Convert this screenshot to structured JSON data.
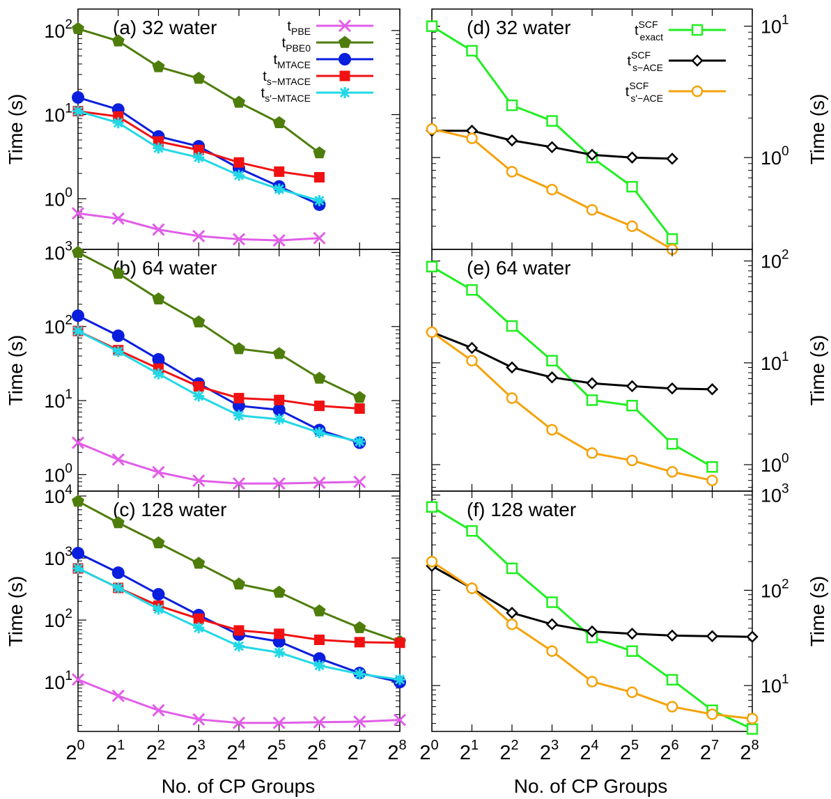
{
  "figure": {
    "xlabel": "No. of CP Groups",
    "ylabel": "Time (s)",
    "x_tick_labels": [
      {
        "base": "2",
        "exp": "0"
      },
      {
        "base": "2",
        "exp": "1"
      },
      {
        "base": "2",
        "exp": "2"
      },
      {
        "base": "2",
        "exp": "3"
      },
      {
        "base": "2",
        "exp": "4"
      },
      {
        "base": "2",
        "exp": "5"
      },
      {
        "base": "2",
        "exp": "6"
      },
      {
        "base": "2",
        "exp": "7"
      },
      {
        "base": "2",
        "exp": "8"
      }
    ]
  },
  "styles": {
    "t_PBE": {
      "color": "#e15ee8",
      "marker": "x"
    },
    "t_PBE0": {
      "color": "#4e7d0c",
      "marker": "pentagon"
    },
    "t_MTACE": {
      "color": "#0a1ede",
      "marker": "circle"
    },
    "t_s_MTACE": {
      "color": "#f01212",
      "marker": "square"
    },
    "t_s_prime_MTACE": {
      "color": "#22d8e6",
      "marker": "star"
    },
    "t_exact_SCF": {
      "color": "#22ee22",
      "marker": "open-square"
    },
    "t_s_ACE_SCF": {
      "color": "#000000",
      "marker": "diamond"
    },
    "t_s_prime_ACE_SCF": {
      "color": "#f5a20b",
      "marker": "open-circle"
    }
  },
  "chart_data": [
    {
      "type": "line",
      "panel": "a",
      "title": "(a) 32 water",
      "x": [
        0,
        1,
        2,
        3,
        4,
        5,
        6
      ],
      "xlim": [
        0,
        8
      ],
      "yscale": "log",
      "ylim": [
        0.25,
        180
      ],
      "yticks": [
        {
          "value": 1,
          "exp": "0"
        },
        {
          "value": 10,
          "exp": "1"
        },
        {
          "value": 100,
          "exp": "2"
        }
      ],
      "ylabel": "Time (s)",
      "ylabel_side": "left",
      "legend": "top-right",
      "series": [
        {
          "key": "t_PBE",
          "name": "PBE",
          "values": [
            0.67,
            0.58,
            0.43,
            0.36,
            0.33,
            0.32,
            0.34
          ]
        },
        {
          "key": "t_PBE0",
          "name": "PBE0",
          "values": [
            105,
            75,
            37,
            27,
            14,
            8,
            3.5
          ]
        },
        {
          "key": "t_MTACE",
          "name": "MTACE",
          "values": [
            16,
            11.5,
            5.5,
            4.2,
            2.3,
            1.4,
            0.85
          ]
        },
        {
          "key": "t_s_MTACE",
          "name": "s−MTACE",
          "values": [
            11,
            9.5,
            4.8,
            3.8,
            2.7,
            2.1,
            1.8
          ]
        },
        {
          "key": "t_s_prime_MTACE",
          "name": "s'−MTACE",
          "values": [
            11,
            8,
            4,
            3.1,
            1.9,
            1.3,
            0.95
          ]
        }
      ]
    },
    {
      "type": "line",
      "panel": "b",
      "title": "(b) 64 water",
      "x": [
        0,
        1,
        2,
        3,
        4,
        5,
        6,
        7
      ],
      "xlim": [
        0,
        8
      ],
      "yscale": "log",
      "ylim": [
        0.6,
        1100
      ],
      "yticks": [
        {
          "value": 1,
          "exp": "0"
        },
        {
          "value": 10,
          "exp": "1"
        },
        {
          "value": 100,
          "exp": "2"
        },
        {
          "value": 1000,
          "exp": "3"
        }
      ],
      "ylabel": "Time (s)",
      "ylabel_side": "left",
      "series": [
        {
          "key": "t_PBE",
          "values": [
            2.7,
            1.6,
            1.08,
            0.83,
            0.76,
            0.76,
            0.78,
            0.8
          ]
        },
        {
          "key": "t_PBE0",
          "values": [
            1000,
            520,
            235,
            115,
            50,
            43,
            20,
            11
          ]
        },
        {
          "key": "t_MTACE",
          "values": [
            140,
            75,
            36,
            17,
            8.5,
            7.5,
            4,
            2.7
          ]
        },
        {
          "key": "t_s_MTACE",
          "values": [
            87,
            48,
            27,
            15.5,
            10.8,
            10.2,
            8.5,
            7.8
          ]
        },
        {
          "key": "t_s_prime_MTACE",
          "values": [
            87,
            46,
            23,
            11.5,
            6.3,
            5.6,
            3.7,
            2.8
          ]
        }
      ]
    },
    {
      "type": "line",
      "panel": "c",
      "title": "(c) 128 water",
      "x": [
        0,
        1,
        2,
        3,
        4,
        5,
        6,
        7,
        8
      ],
      "xlim": [
        0,
        8
      ],
      "yscale": "log",
      "ylim": [
        1.6,
        12000
      ],
      "yticks": [
        {
          "value": 10,
          "exp": "1"
        },
        {
          "value": 100,
          "exp": "2"
        },
        {
          "value": 1000,
          "exp": "3"
        },
        {
          "value": 10000,
          "exp": "4"
        }
      ],
      "ylabel": "Time (s)",
      "ylabel_side": "left",
      "series": [
        {
          "key": "t_PBE",
          "values": [
            11,
            6,
            3.5,
            2.5,
            2.2,
            2.2,
            2.25,
            2.3,
            2.45
          ]
        },
        {
          "key": "t_PBE0",
          "values": [
            8200,
            3700,
            1750,
            820,
            380,
            280,
            140,
            75,
            45
          ]
        },
        {
          "key": "t_MTACE",
          "values": [
            1200,
            580,
            260,
            120,
            58,
            45,
            24,
            14,
            10
          ]
        },
        {
          "key": "t_s_MTACE",
          "values": [
            680,
            330,
            170,
            105,
            68,
            60,
            48,
            44,
            43
          ]
        },
        {
          "key": "t_s_prime_MTACE",
          "values": [
            680,
            330,
            150,
            75,
            38,
            30,
            18.5,
            13.5,
            11
          ]
        }
      ]
    },
    {
      "type": "line",
      "panel": "d",
      "title": "(d) 32 water",
      "x": [
        0,
        1,
        2,
        3,
        4,
        5,
        6
      ],
      "xlim": [
        0,
        8
      ],
      "yscale": "log",
      "ylim": [
        0.2,
        13.5
      ],
      "yticks": [
        {
          "value": 1,
          "exp": "0"
        },
        {
          "value": 10,
          "exp": "1"
        }
      ],
      "ylabel": "Time (s)",
      "ylabel_side": "right",
      "legend": "top-right",
      "series": [
        {
          "key": "t_exact_SCF",
          "name": "exact",
          "values": [
            10,
            6.5,
            2.5,
            1.9,
            1.0,
            0.6,
            0.24
          ]
        },
        {
          "key": "t_s_ACE_SCF",
          "name": "s−ACE",
          "values": [
            1.6,
            1.6,
            1.35,
            1.2,
            1.05,
            1.0,
            0.98
          ]
        },
        {
          "key": "t_s_prime_ACE_SCF",
          "name": "s'−ACE",
          "values": [
            1.65,
            1.4,
            0.78,
            0.57,
            0.4,
            0.3,
            0.2
          ]
        }
      ]
    },
    {
      "type": "line",
      "panel": "e",
      "title": "(e) 64 water",
      "x": [
        0,
        1,
        2,
        3,
        4,
        5,
        6,
        7
      ],
      "xlim": [
        0,
        8
      ],
      "yscale": "log",
      "ylim": [
        0.55,
        130
      ],
      "yticks": [
        {
          "value": 1,
          "exp": "0"
        },
        {
          "value": 10,
          "exp": "1"
        },
        {
          "value": 100,
          "exp": "2"
        }
      ],
      "ylabel": "Time (s)",
      "ylabel_side": "right",
      "series": [
        {
          "key": "t_exact_SCF",
          "values": [
            88,
            52,
            23,
            10.5,
            4.3,
            3.8,
            1.6,
            0.95
          ]
        },
        {
          "key": "t_s_ACE_SCF",
          "values": [
            20,
            14,
            9,
            7.2,
            6.3,
            5.9,
            5.6,
            5.5
          ]
        },
        {
          "key": "t_s_prime_ACE_SCF",
          "values": [
            20,
            10.5,
            4.5,
            2.2,
            1.3,
            1.1,
            0.85,
            0.7
          ]
        }
      ]
    },
    {
      "type": "line",
      "panel": "f",
      "title": "(f) 128 water",
      "x": [
        0,
        1,
        2,
        3,
        4,
        5,
        6,
        7,
        8
      ],
      "xlim": [
        0,
        8
      ],
      "yscale": "log",
      "ylim": [
        3.3,
        1100
      ],
      "yticks": [
        {
          "value": 10,
          "exp": "1"
        },
        {
          "value": 100,
          "exp": "2"
        },
        {
          "value": 1000,
          "exp": "3"
        }
      ],
      "ylabel": "Time (s)",
      "ylabel_side": "right",
      "series": [
        {
          "key": "t_exact_SCF",
          "values": [
            750,
            420,
            170,
            75,
            32,
            23,
            11.5,
            5.5,
            3.5
          ]
        },
        {
          "key": "t_s_ACE_SCF",
          "values": [
            180,
            105,
            58,
            44,
            37,
            35,
            33.5,
            33,
            32.5
          ]
        },
        {
          "key": "t_s_prime_ACE_SCF",
          "values": [
            200,
            105,
            44,
            23,
            11,
            8.5,
            6,
            5,
            4.5
          ]
        }
      ]
    }
  ]
}
